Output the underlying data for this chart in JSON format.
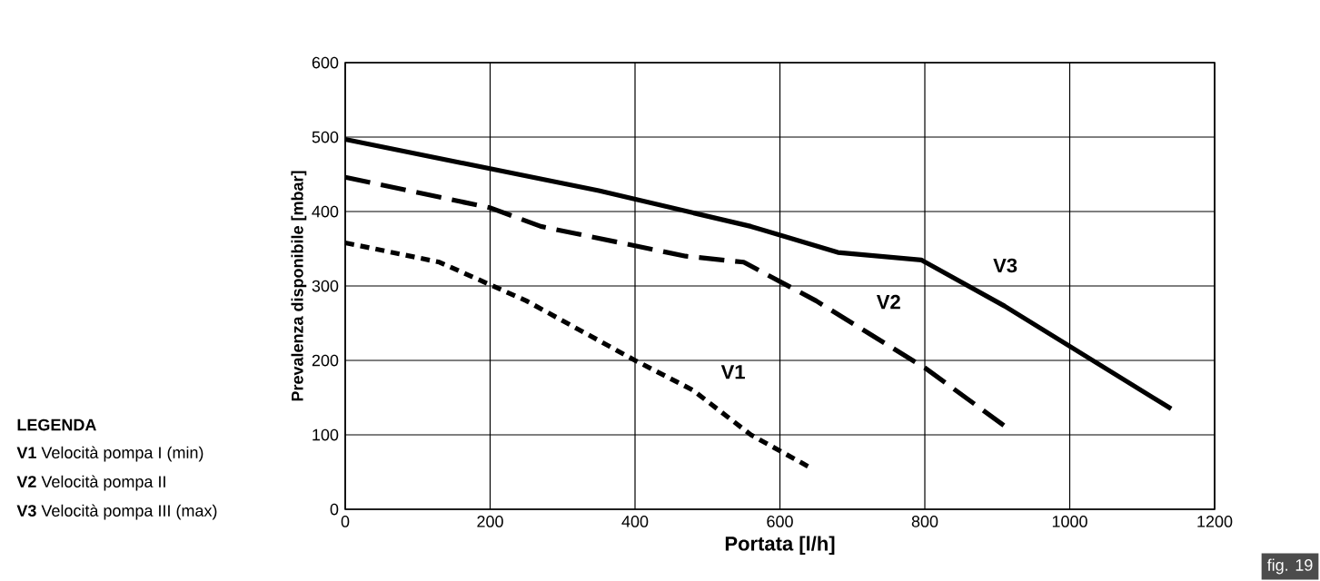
{
  "chart_data": {
    "type": "line",
    "xlabel": "Portata [l/h]",
    "ylabel": "Prevalenza disponibile [mbar]",
    "xlim": [
      0,
      1200
    ],
    "xticks": [
      0,
      200,
      400,
      600,
      800,
      1000,
      1200
    ],
    "ylim": [
      0,
      600
    ],
    "yticks": [
      0,
      100,
      200,
      300,
      400,
      500,
      600
    ],
    "grid": true,
    "legend": false,
    "marker": "none",
    "series": [
      {
        "name": "V1",
        "color": "#000000",
        "line_style": "dotted",
        "x": [
          0,
          130,
          250,
          400,
          480,
          560,
          640
        ],
        "values": [
          358,
          332,
          280,
          200,
          160,
          100,
          57
        ]
      },
      {
        "name": "V2",
        "color": "#000000",
        "line_style": "dashed",
        "x": [
          0,
          200,
          270,
          470,
          550,
          650,
          800,
          920
        ],
        "values": [
          446,
          405,
          380,
          340,
          332,
          280,
          190,
          105
        ]
      },
      {
        "name": "V3",
        "color": "#000000",
        "line_style": "solid",
        "x": [
          0,
          350,
          560,
          680,
          795,
          910,
          1140
        ],
        "values": [
          497,
          428,
          380,
          345,
          335,
          273,
          135
        ]
      }
    ],
    "annotations": [
      "**LEGENDA**",
      "**V1** Velocità pompa I (min)",
      "**V2** Velocità pompa II",
      "**V3** Velocità pompa III (max)",
      "fig. 19"
    ]
  }
}
